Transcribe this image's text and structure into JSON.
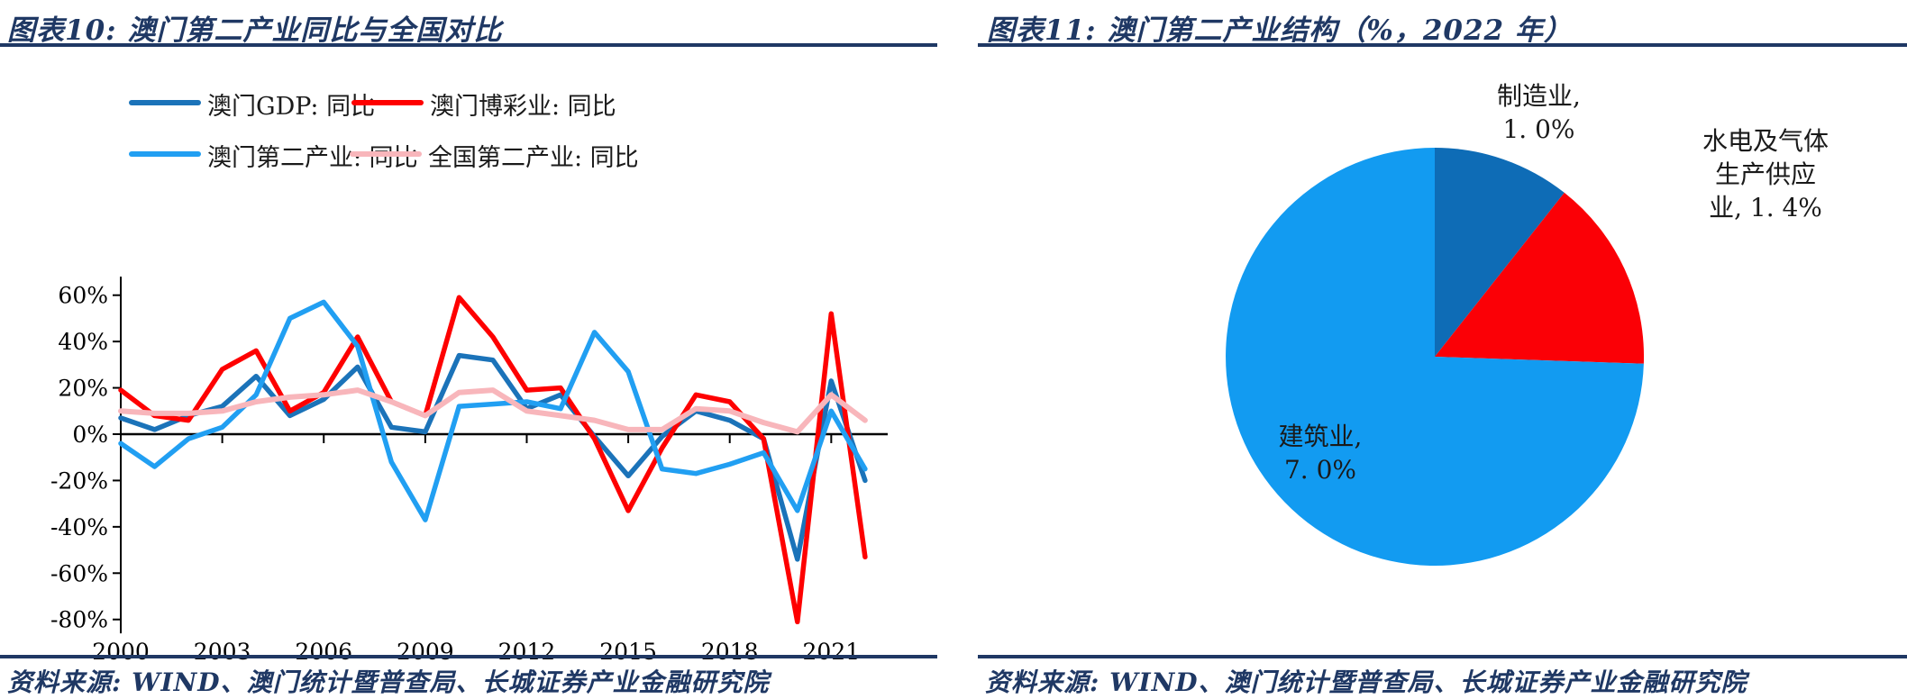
{
  "panels": {
    "left": {
      "title": "图表10:  澳门第二产业同比与全国对比",
      "source": "资料来源: WIND、澳门统计暨普查局、长城证券产业金融研究院"
    },
    "right": {
      "title": "图表11:  澳门第二产业结构（%，2022 年）",
      "source": "资料来源: WIND、澳门统计暨普查局、长城证券产业金融研究院"
    }
  },
  "colors": {
    "navy_text": "#1F3864",
    "rule": "#1F3864",
    "axis": "#000000",
    "label_text": "#1a1a1a"
  },
  "chart_data": [
    {
      "type": "line",
      "title": "澳门第二产业同比与全国对比",
      "x": [
        2000,
        2001,
        2002,
        2003,
        2004,
        2005,
        2006,
        2007,
        2008,
        2009,
        2010,
        2011,
        2012,
        2013,
        2014,
        2015,
        2016,
        2017,
        2018,
        2019,
        2020,
        2021,
        2022
      ],
      "xtick_labels": [
        "2000",
        "2003",
        "2006",
        "2009",
        "2012",
        "2015",
        "2018",
        "2021"
      ],
      "yticks": [
        60,
        40,
        20,
        0,
        -20,
        -40,
        -60,
        -80
      ],
      "ytick_labels": [
        "60%",
        "40%",
        "20%",
        "0%",
        "-20%",
        "-40%",
        "-60%",
        "-80%"
      ],
      "ylim": [
        -86,
        68
      ],
      "grid": false,
      "legend_position": "top",
      "series": [
        {
          "name": "澳门GDP: 同比",
          "color": "#1B73B9",
          "values": [
            7,
            2,
            8,
            12,
            25,
            8,
            15,
            29,
            3,
            1,
            34,
            32,
            11,
            17,
            -1,
            -18,
            -1,
            10,
            6,
            -2,
            -54,
            23,
            -20
          ]
        },
        {
          "name": "澳门博彩业: 同比",
          "color": "#FE0000",
          "values": [
            19,
            8,
            6,
            28,
            36,
            10,
            18,
            42,
            14,
            8,
            59,
            42,
            19,
            20,
            -2,
            -33,
            -6,
            17,
            14,
            -2,
            -81,
            52,
            -53
          ]
        },
        {
          "name": "澳门第二产业: 同比",
          "color": "#219FF2",
          "values": [
            -4,
            -14,
            -2,
            3,
            17,
            50,
            57,
            38,
            -12,
            -37,
            12,
            13,
            14,
            11,
            44,
            27,
            -15,
            -17,
            -13,
            -8,
            -33,
            10,
            -15
          ]
        },
        {
          "name": "全国第二产业: 同比",
          "color": "#F8B6BB",
          "values": [
            10,
            9,
            9,
            10,
            14,
            16,
            17,
            19,
            14,
            8,
            18,
            19,
            10,
            8,
            6,
            2,
            2,
            11,
            10,
            5,
            1,
            17,
            6
          ]
        }
      ]
    },
    {
      "type": "pie",
      "title": "澳门第二产业结构（%，2022年）",
      "unit": "%",
      "year": "2022",
      "start_angle_deg": 0,
      "direction": "clockwise",
      "slices": [
        {
          "label": "制造业",
          "value": 1.0,
          "display": "制造业,\n1. 0%",
          "color": "#0E6CB6"
        },
        {
          "label": "水电及气体生产供应业",
          "value": 1.4,
          "display": "水电及气体\n生产供应\n业, 1. 4%",
          "color": "#FB0006"
        },
        {
          "label": "建筑业",
          "value": 7.0,
          "display": "建筑业,\n7. 0%",
          "color": "#129BF1"
        }
      ]
    }
  ]
}
